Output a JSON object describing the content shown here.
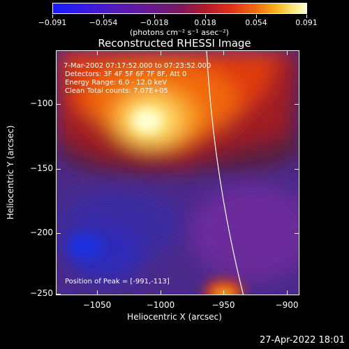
{
  "colorbar": {
    "ticks": [
      "−0.091",
      "−0.054",
      "−0.018",
      "0.018",
      "0.054",
      "0.091"
    ],
    "units": "(photons cm⁻² s⁻¹ asec⁻²)"
  },
  "title": "Reconstructed RHESSI Image",
  "info": {
    "line1": "7-Mar-2002 07:17:52.000 to 07:23:52.000",
    "line2": "Detectors: 3F 4F 5F 6F 7F 8F, Att 0",
    "line3": "Energy Range: 6.0 - 12.0 keV",
    "line4": "Clean    Total counts: 7.07E+05",
    "peak": "Position of Peak = [-991,-113]"
  },
  "axes": {
    "xlabel": "Heliocentric X (arcsec)",
    "ylabel": "Heliocentric Y (arcsec)",
    "xticks": [
      "−1050",
      "−1000",
      "−950",
      "−900"
    ],
    "yticks": [
      "−100",
      "−150",
      "−200",
      "−250"
    ]
  },
  "datestamp": "27-Apr-2022 18:01",
  "colors": {
    "background": "#000000",
    "limb_line": "#ffffff"
  }
}
